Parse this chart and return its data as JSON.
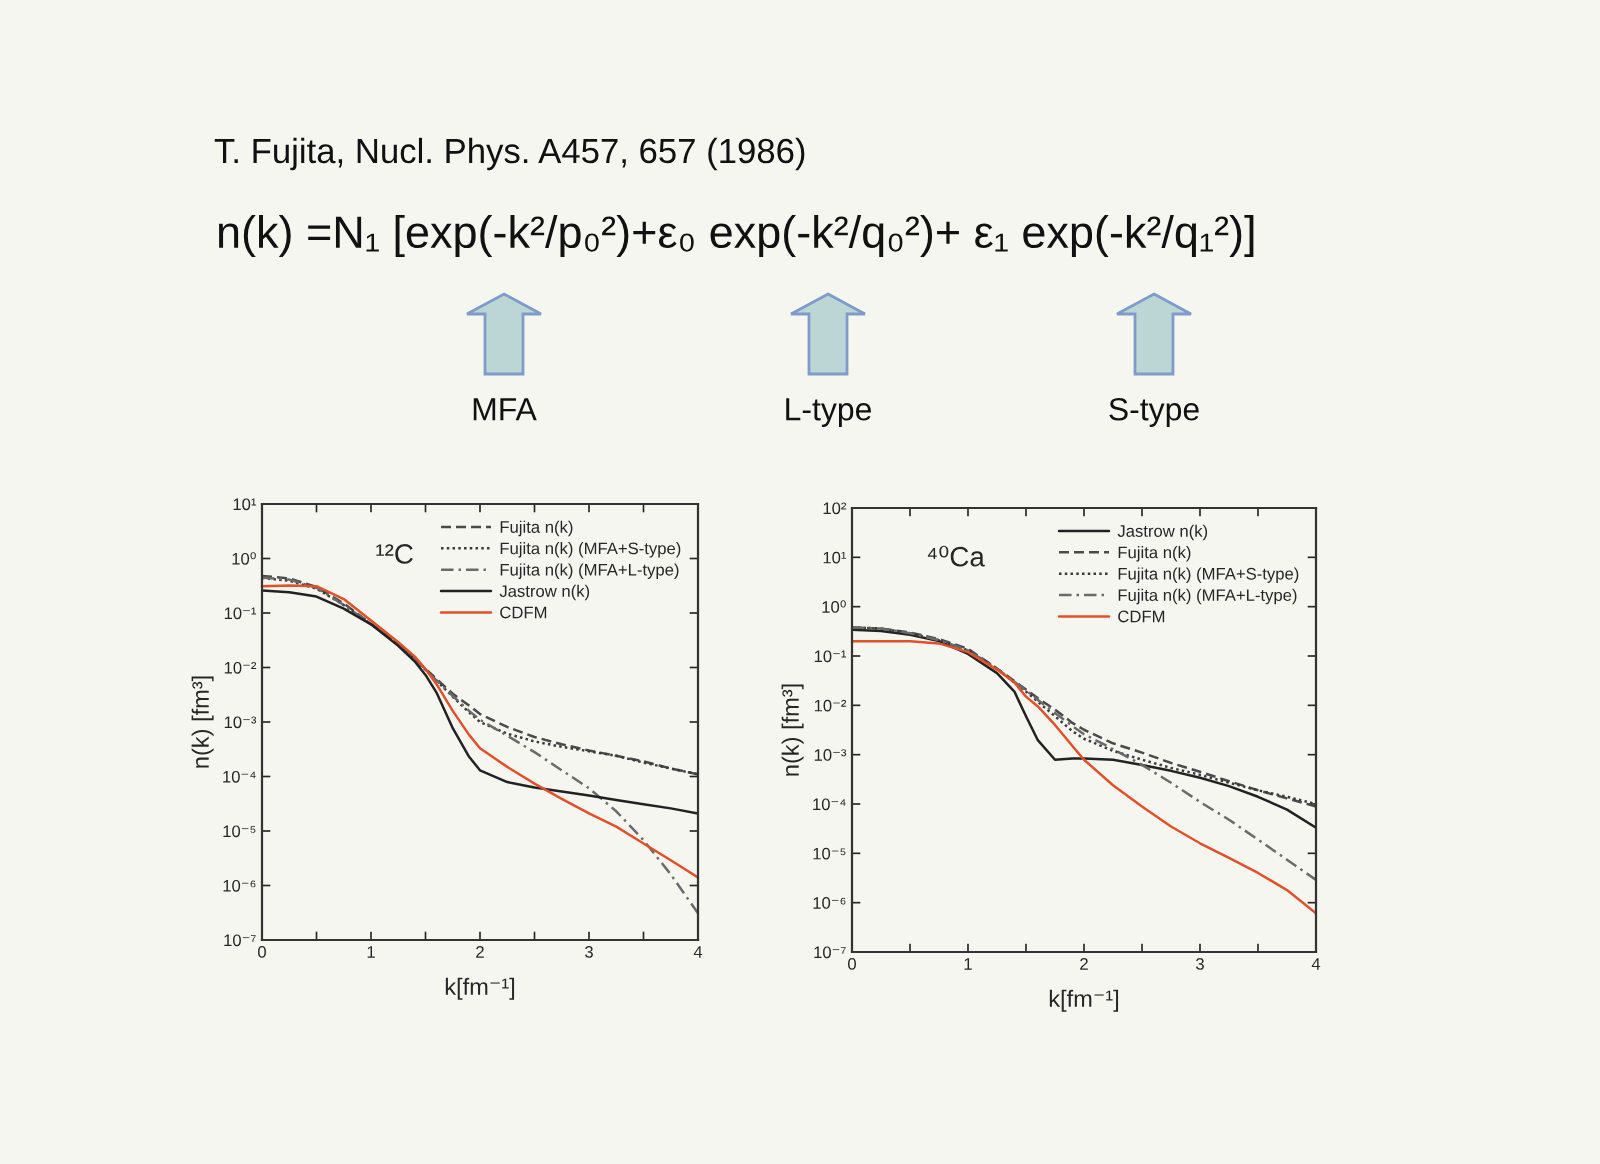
{
  "chart_data": [
    {
      "type": "other",
      "title": "T. Fujita, Nucl. Phys. A457, 657 (1986)",
      "annotations": [
        "n(k) =N₁ [exp(-k²/p₀²)+ε₀ exp(-k²/q₀²)+ ε₁ exp(-k²/q₁²)]",
        "MFA",
        "L-type",
        "S-type"
      ]
    },
    {
      "type": "line",
      "xlabel": "k[fm⁻¹]",
      "ylabel": "n(k) [fm³]",
      "annotations": [
        "¹²C"
      ],
      "log": "y",
      "legend": "top right",
      "xlim": [
        0,
        4
      ],
      "xticks": [
        0,
        {
          "value": 0.5,
          "label": null
        },
        1,
        {
          "value": 1.5,
          "label": null
        },
        2,
        {
          "value": 2.5,
          "label": null
        },
        3,
        {
          "value": 3.5,
          "label": null
        },
        4
      ],
      "ylim": [
        1e-07,
        10
      ],
      "yticks": [
        {
          "value": 1e-07,
          "label": "10⁻⁷"
        },
        {
          "value": 1e-06,
          "label": "10⁻⁶"
        },
        {
          "value": 1e-05,
          "label": "10⁻⁵"
        },
        {
          "value": 0.0001,
          "label": "10⁻⁴"
        },
        {
          "value": 0.001,
          "label": "10⁻³"
        },
        {
          "value": 0.01,
          "label": "10⁻²"
        },
        {
          "value": 0.1,
          "label": "10⁻¹"
        },
        {
          "value": 1,
          "label": "10⁰"
        },
        {
          "value": 10,
          "label": "10¹"
        }
      ],
      "x": [
        0,
        0.25,
        0.5,
        0.75,
        1,
        1.25,
        1.4,
        1.5,
        1.6,
        1.75,
        1.9,
        2,
        2.25,
        2.5,
        2.75,
        3,
        3.25,
        3.5,
        3.75,
        4
      ],
      "series": [
        {
          "name": "Fujita n(k)",
          "color": "#4a4a4a",
          "line_style": "dashed",
          "values": [
            0.48,
            0.43,
            0.3,
            0.15,
            0.063,
            0.027,
            0.014,
            0.0094,
            0.0062,
            0.0033,
            0.002,
            0.0014,
            0.00081,
            0.00053,
            0.00039,
            0.0003,
            0.00024,
            0.00019,
            0.00014,
            0.00011
          ]
        },
        {
          "name": "Fujita n(k) (MFA+S-type)",
          "color": "#3a3a3a",
          "line_style": "dotted",
          "values": [
            0.44,
            0.39,
            0.28,
            0.14,
            0.063,
            0.027,
            0.014,
            0.0091,
            0.0058,
            0.0029,
            0.0015,
            0.001,
            0.00061,
            0.00044,
            0.00035,
            0.00029,
            0.00024,
            0.00018,
            0.00014,
            0.00011
          ]
        },
        {
          "name": "Fujita n(k) (MFA+L-type)",
          "color": "#6a6a6a",
          "line_style": "dashdot",
          "values": [
            0.45,
            0.41,
            0.29,
            0.14,
            0.063,
            0.027,
            0.014,
            0.0091,
            0.0058,
            0.003,
            0.0016,
            0.0011,
            0.00056,
            0.00028,
            0.00013,
            6.1e-05,
            2.3e-05,
            6.8e-06,
            1.6e-06,
            3.1e-07
          ]
        },
        {
          "name": "Jastrow n(k)",
          "color": "#222222",
          "line_style": "solid",
          "values": [
            0.26,
            0.24,
            0.2,
            0.12,
            0.062,
            0.025,
            0.013,
            0.0073,
            0.0035,
            0.00077,
            0.00023,
            0.00013,
            7.9e-05,
            6.3e-05,
            5.3e-05,
            4.5e-05,
            3.7e-05,
            3.1e-05,
            2.6e-05,
            2.1e-05
          ]
        },
        {
          "name": "CDFM",
          "color": "#e0502a",
          "line_style": "solid",
          "values": [
            0.31,
            0.32,
            0.31,
            0.18,
            0.073,
            0.029,
            0.016,
            0.0094,
            0.005,
            0.0016,
            0.00058,
            0.00033,
            0.00015,
            7.4e-05,
            3.9e-05,
            2.1e-05,
            1.2e-05,
            5.9e-06,
            2.9e-06,
            1.4e-06
          ]
        }
      ]
    },
    {
      "type": "line",
      "xlabel": "k[fm⁻¹]",
      "ylabel": "n(k) [fm³]",
      "annotations": [
        "⁴⁰Ca"
      ],
      "log": "y",
      "legend": "top right",
      "xlim": [
        0,
        4
      ],
      "xticks": [
        0,
        {
          "value": 0.5,
          "label": null
        },
        1,
        {
          "value": 1.5,
          "label": null
        },
        2,
        {
          "value": 2.5,
          "label": null
        },
        3,
        {
          "value": 3.5,
          "label": null
        },
        4
      ],
      "ylim": [
        1e-07,
        100
      ],
      "yticks": [
        {
          "value": 1e-07,
          "label": "10⁻⁷"
        },
        {
          "value": 1e-06,
          "label": "10⁻⁶"
        },
        {
          "value": 1e-05,
          "label": "10⁻⁵"
        },
        {
          "value": 0.0001,
          "label": "10⁻⁴"
        },
        {
          "value": 0.001,
          "label": "10⁻³"
        },
        {
          "value": 0.01,
          "label": "10⁻²"
        },
        {
          "value": 0.1,
          "label": "10⁻¹"
        },
        {
          "value": 1,
          "label": "10⁰"
        },
        {
          "value": 10,
          "label": "10¹"
        },
        {
          "value": 100,
          "label": "10²"
        }
      ],
      "x": [
        0,
        0.25,
        0.5,
        0.75,
        1,
        1.25,
        1.4,
        1.5,
        1.6,
        1.75,
        1.9,
        2,
        2.25,
        2.5,
        2.75,
        3,
        3.25,
        3.5,
        3.75,
        4
      ],
      "series": [
        {
          "name": "Jastrow n(k)",
          "color": "#222222",
          "line_style": "solid",
          "values": [
            0.34,
            0.32,
            0.27,
            0.2,
            0.11,
            0.045,
            0.019,
            0.006,
            0.002,
            0.00079,
            0.00084,
            0.00084,
            0.00079,
            0.00062,
            0.00047,
            0.00034,
            0.00023,
            0.00014,
            7.7e-05,
            3.3e-05
          ]
        },
        {
          "name": "Fujita n(k)",
          "color": "#4a4a4a",
          "line_style": "dashed",
          "values": [
            0.38,
            0.36,
            0.3,
            0.22,
            0.14,
            0.056,
            0.031,
            0.021,
            0.014,
            0.0082,
            0.0044,
            0.0032,
            0.0017,
            0.0011,
            0.00068,
            0.00045,
            0.00029,
            0.00019,
            0.00013,
            8.9e-05
          ]
        },
        {
          "name": "Fujita n(k) (MFA+S-type)",
          "color": "#3a3a3a",
          "line_style": "dotted",
          "values": [
            0.38,
            0.36,
            0.29,
            0.21,
            0.13,
            0.055,
            0.029,
            0.019,
            0.012,
            0.006,
            0.003,
            0.0021,
            0.0012,
            0.00079,
            0.00054,
            0.00039,
            0.00027,
            0.00019,
            0.00014,
            0.0001
          ]
        },
        {
          "name": "Fujita n(k) (MFA+L-type)",
          "color": "#6a6a6a",
          "line_style": "dashdot",
          "values": [
            0.38,
            0.36,
            0.29,
            0.21,
            0.13,
            0.055,
            0.03,
            0.02,
            0.013,
            0.007,
            0.0038,
            0.0026,
            0.0013,
            0.00062,
            0.00027,
            0.00011,
            4.8e-05,
            1.9e-05,
            7.4e-06,
            2.9e-06
          ]
        },
        {
          "name": "CDFM",
          "color": "#e0502a",
          "line_style": "solid",
          "values": [
            0.2,
            0.2,
            0.2,
            0.18,
            0.12,
            0.053,
            0.029,
            0.015,
            0.0096,
            0.004,
            0.0015,
            0.00079,
            0.00024,
            8.9e-05,
            3.5e-05,
            1.6e-05,
            8.1e-06,
            4e-06,
            1.8e-06,
            6.1e-07
          ]
        }
      ]
    }
  ]
}
